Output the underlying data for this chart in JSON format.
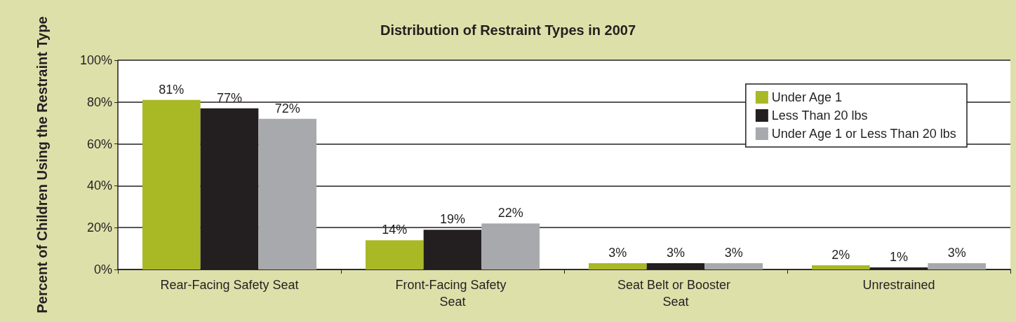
{
  "chart_data": {
    "type": "bar",
    "title": "Distribution of Restraint Types in 2007",
    "ylabel": "Percent of Children Using the Restraint Type",
    "categories": [
      "Rear-Facing Safety Seat",
      "Front-Facing Safety Seat",
      "Seat Belt or Booster Seat",
      "Unrestrained"
    ],
    "series": [
      {
        "name": "Under Age 1",
        "color": "#a9b825",
        "values": [
          81,
          14,
          3,
          2
        ],
        "value_labels": [
          "81%",
          "14%",
          "3%",
          "2%"
        ]
      },
      {
        "name": "Less Than 20 lbs",
        "color": "#231f20",
        "values": [
          77,
          19,
          3,
          1
        ],
        "value_labels": [
          "77%",
          "19%",
          "3%",
          "1%"
        ]
      },
      {
        "name": "Under Age 1 or Less Than 20 lbs",
        "color": "#a7a9ac",
        "values": [
          72,
          22,
          3,
          3
        ],
        "value_labels": [
          "72%",
          "22%",
          "3%",
          "3%"
        ]
      }
    ],
    "ylim": [
      0,
      100
    ],
    "yticks": [
      {
        "value": 0,
        "label": "0%"
      },
      {
        "value": 20,
        "label": "20%"
      },
      {
        "value": 40,
        "label": "40%"
      },
      {
        "value": 60,
        "label": "60%"
      },
      {
        "value": 80,
        "label": "80%"
      },
      {
        "value": 100,
        "label": "100%"
      }
    ],
    "grid": "y",
    "legend": "top right"
  }
}
